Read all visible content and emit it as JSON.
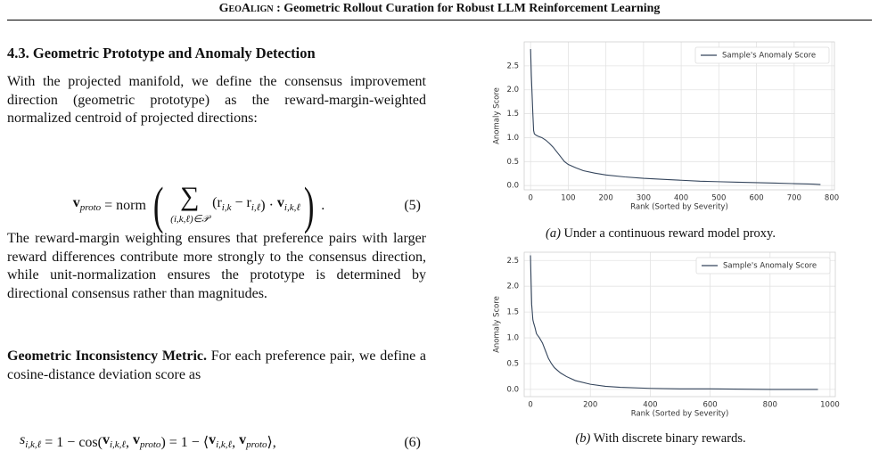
{
  "header": {
    "name": "GeoAlign",
    "title": ": Geometric Rollout Curation for Robust LLM Reinforcement Learning"
  },
  "section": {
    "heading": "4.3. Geometric Prototype and Anomaly Detection",
    "para1": "With the projected manifold, we define the consensus improvement direction (geometric prototype) as the reward-margin-weighted normalized centroid of projected directions:",
    "eq5": {
      "parts": [
        {
          "t": "v",
          "b": true,
          "sub": "proto"
        },
        {
          "t": " = norm "
        },
        {
          "paren": "("
        },
        {
          "big": "∑",
          "under": "(i,k,ℓ)∈𝒫"
        },
        {
          "t": "(r",
          "sub": "i,k"
        },
        {
          "t": " − r",
          "sub": "i,ℓ"
        },
        {
          "t": ") · "
        },
        {
          "t": "v",
          "b": true,
          "sub": "i,k,ℓ"
        },
        {
          "paren": ")"
        },
        {
          "t": " ."
        }
      ],
      "number": "(5)"
    },
    "para2": "The reward-margin weighting ensures that preference pairs with larger reward differences contribute more strongly to the consensus direction, while unit-normalization ensures the prototype is determined by directional consensus rather than magnitudes.",
    "para3_head": "Geometric Inconsistency Metric.",
    "para3": " For each preference pair, we define a cosine-distance deviation score as",
    "eq6": {
      "parts": [
        {
          "t": "s",
          "i": true,
          "sub": "i,k,ℓ"
        },
        {
          "t": " = 1 − cos("
        },
        {
          "t": "v",
          "b": true,
          "sub": "i,k,ℓ"
        },
        {
          "t": ", "
        },
        {
          "t": "v",
          "b": true,
          "sub": "proto"
        },
        {
          "t": ") = 1 − ⟨"
        },
        {
          "t": "v",
          "b": true,
          "sub": "i,k,ℓ"
        },
        {
          "t": ", "
        },
        {
          "t": "v",
          "b": true,
          "sub": "proto"
        },
        {
          "t": "⟩,"
        }
      ],
      "number": "(6)"
    }
  },
  "chart_data": [
    {
      "type": "line",
      "caption_label": "(a)",
      "caption": " Under a continuous reward model proxy.",
      "x_label": "Rank (Sorted by Severity)",
      "y_label": "Anomaly Score",
      "grid": true,
      "legend": "upper right",
      "xlim": [
        -17,
        807
      ],
      "ylim": [
        -0.09,
        3.0
      ],
      "xticks": [
        0,
        100,
        200,
        300,
        400,
        500,
        600,
        700,
        800
      ],
      "yticks": [
        {
          "value": 0,
          "label": "0.0"
        },
        0.5,
        {
          "value": 1,
          "label": "1.0"
        },
        1.5,
        {
          "value": 2,
          "label": "2.0"
        },
        2.5
      ],
      "x": [
        0,
        2,
        4,
        6,
        8,
        10,
        15,
        20,
        30,
        40,
        50,
        60,
        70,
        80,
        90,
        100,
        120,
        140,
        170,
        200,
        250,
        300,
        350,
        400,
        450,
        500,
        550,
        600,
        650,
        700,
        750,
        770
      ],
      "series": [
        {
          "name": "Sample's Anomaly Score",
          "color": "#34455c",
          "values": [
            2.85,
            2.3,
            1.9,
            1.5,
            1.15,
            1.08,
            1.05,
            1.03,
            1.0,
            0.95,
            0.88,
            0.8,
            0.7,
            0.6,
            0.5,
            0.44,
            0.37,
            0.31,
            0.26,
            0.22,
            0.18,
            0.15,
            0.13,
            0.11,
            0.09,
            0.08,
            0.07,
            0.06,
            0.05,
            0.04,
            0.03,
            0.02
          ]
        }
      ]
    },
    {
      "type": "line",
      "caption_label": "(b)",
      "caption": " With discrete binary rewards.",
      "x_label": "Rank (Sorted by Severity)",
      "y_label": "Anomaly Score",
      "grid": true,
      "legend": "upper right",
      "xlim": [
        -21,
        1018
      ],
      "ylim": [
        -0.14,
        2.66
      ],
      "xticks": [
        0,
        200,
        400,
        600,
        800,
        1000
      ],
      "yticks": [
        {
          "value": 0,
          "label": "0.0"
        },
        0.5,
        {
          "value": 1,
          "label": "1.0"
        },
        1.5,
        {
          "value": 2,
          "label": "2.0"
        },
        2.5
      ],
      "x": [
        0,
        2,
        4,
        6,
        8,
        10,
        15,
        20,
        30,
        40,
        50,
        60,
        70,
        80,
        100,
        120,
        150,
        200,
        250,
        300,
        400,
        500,
        600,
        800,
        960
      ],
      "series": [
        {
          "name": "Sample's Anomaly Score",
          "color": "#34455c",
          "values": [
            2.6,
            2.1,
            1.65,
            1.5,
            1.35,
            1.3,
            1.2,
            1.08,
            1.0,
            0.9,
            0.75,
            0.6,
            0.5,
            0.42,
            0.32,
            0.25,
            0.17,
            0.1,
            0.06,
            0.04,
            0.02,
            0.01,
            0.01,
            0.0,
            0.0
          ]
        }
      ]
    }
  ]
}
